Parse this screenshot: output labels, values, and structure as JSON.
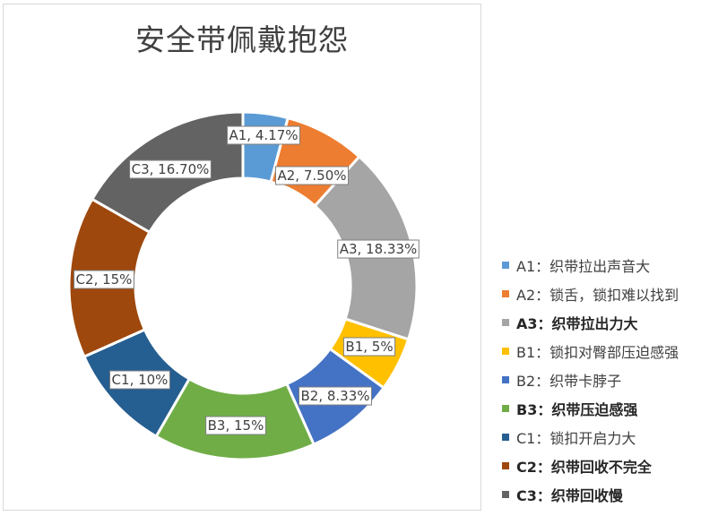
{
  "chart_data": {
    "type": "pie",
    "donut": true,
    "title": "安全带佩戴抱怨",
    "legend_position": "right",
    "slices": [
      {
        "name": "A1",
        "legend": "A1：织带拉出声音大",
        "value": 4.17,
        "label": "A1, 4.17%",
        "color": "#5b9bd5",
        "bold": false
      },
      {
        "name": "A2",
        "legend": "A2：锁舌，锁扣难以找到",
        "value": 7.5,
        "label": "A2, 7.50%",
        "color": "#ed7d31",
        "bold": false
      },
      {
        "name": "A3",
        "legend": "A3：织带拉出力大",
        "value": 18.33,
        "label": "A3, 18.33%",
        "color": "#a5a5a5",
        "bold": true
      },
      {
        "name": "B1",
        "legend": "B1：锁扣对臀部压迫感强",
        "value": 5,
        "label": "B1, 5%",
        "color": "#ffc000",
        "bold": false
      },
      {
        "name": "B2",
        "legend": "B2：织带卡脖子",
        "value": 8.33,
        "label": "B2, 8.33%",
        "color": "#4472c4",
        "bold": false
      },
      {
        "name": "B3",
        "legend": "B3：织带压迫感强",
        "value": 15,
        "label": "B3, 15%",
        "color": "#70ad47",
        "bold": true
      },
      {
        "name": "C1",
        "legend": "C1：锁扣开启力大",
        "value": 10,
        "label": "C1, 10%",
        "color": "#255e91",
        "bold": false
      },
      {
        "name": "C2",
        "legend": "C2：织带回收不完全",
        "value": 15,
        "label": "C2, 15%",
        "color": "#9e480e",
        "bold": true
      },
      {
        "name": "C3",
        "legend": "C3：织带回收慢",
        "value": 16.7,
        "label": "C3, 16.70%",
        "color": "#636363",
        "bold": true
      }
    ]
  }
}
